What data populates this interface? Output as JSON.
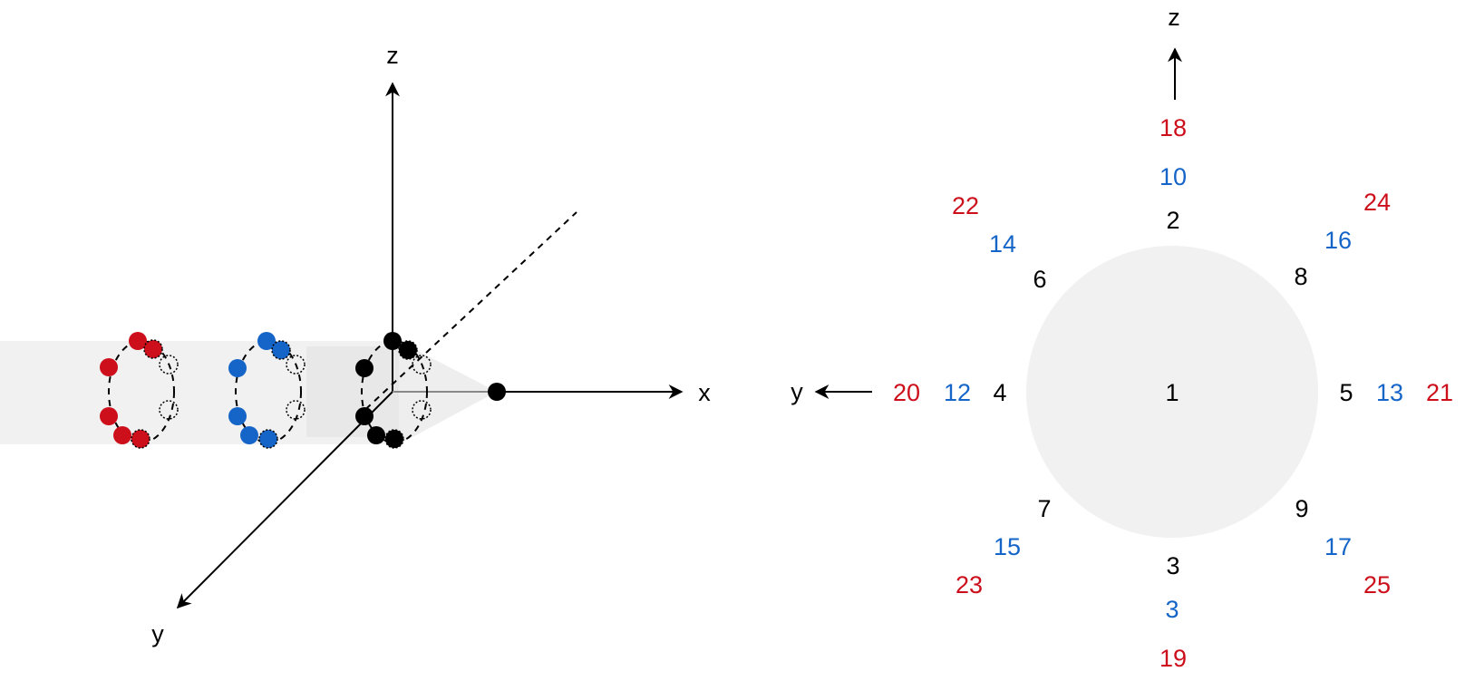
{
  "colors": {
    "red": "#cc0f1b",
    "blue": "#1565c8",
    "black": "#000000",
    "panel": "#f1f1f1"
  },
  "left": {
    "axes": {
      "x": "x",
      "y": "y",
      "z": "z"
    },
    "rings": [
      {
        "color": "red"
      },
      {
        "color": "blue"
      },
      {
        "color": "black"
      }
    ]
  },
  "right": {
    "axes": {
      "y": "y",
      "z": "z"
    },
    "center": "1",
    "labels": {
      "n2": "2",
      "n3": "3",
      "n4": "4",
      "n5": "5",
      "n6": "6",
      "n7": "7",
      "n8": "8",
      "n9": "9",
      "n10": "10",
      "n3b": "3",
      "n12": "12",
      "n13": "13",
      "n14": "14",
      "n15": "15",
      "n16": "16",
      "n17": "17",
      "n18": "18",
      "n19": "19",
      "n20": "20",
      "n21": "21",
      "n22": "22",
      "n23": "23",
      "n24": "24",
      "n25": "25"
    }
  }
}
